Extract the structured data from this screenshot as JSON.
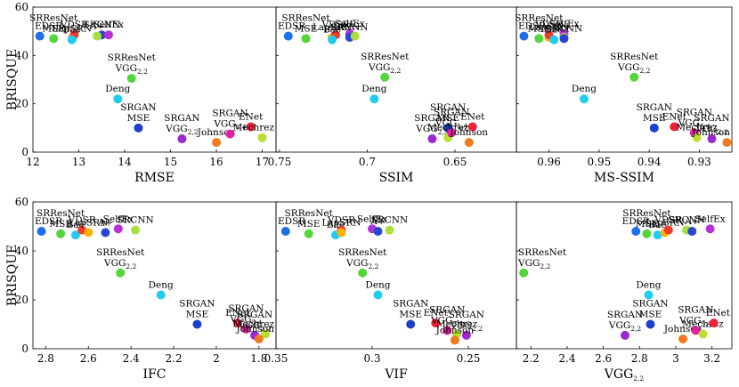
{
  "chart_data": [
    {
      "type": "scatter",
      "xlabel": "RMSE",
      "ylabel": "BRISQUE",
      "xlim": [
        12,
        17.3
      ],
      "ylim": [
        0,
        60
      ],
      "xticks": [
        "12",
        "13",
        "14",
        "15",
        "16",
        "17"
      ],
      "yticks": [
        "0",
        "20",
        "40",
        "60"
      ],
      "points": [
        {
          "name": "EDSR",
          "label": [
            "EDSR"
          ],
          "x": 12.15,
          "y": 48,
          "color": "#1f6fe8"
        },
        {
          "name": "SRResNet MSE",
          "label": [
            "SRResNet",
            "MSE"
          ],
          "x": 12.45,
          "y": 47,
          "color": "#52d63a"
        },
        {
          "name": "LapSRN",
          "label": [
            "LapSRN"
          ],
          "x": 12.85,
          "y": 47,
          "color": "#ffb000"
        },
        {
          "name": "VDSR",
          "label": [
            "VDSR"
          ],
          "x": 12.9,
          "y": 48.5,
          "color": "#f03a2a"
        },
        {
          "name": "Bae",
          "label": [
            "Bae"
          ],
          "x": 12.85,
          "y": 46.5,
          "color": "#20ccee"
        },
        {
          "name": "SRCNN",
          "label": [
            "SRCNN"
          ],
          "x": 13.5,
          "y": 48.5,
          "color": "#2a46d0"
        },
        {
          "name": "A+",
          "label": [
            "A+"
          ],
          "x": 13.4,
          "y": 48,
          "color": "#a8e040"
        },
        {
          "name": "SelfEx",
          "label": [
            "SelfEx"
          ],
          "x": 13.65,
          "y": 48.5,
          "color": "#b431d8"
        },
        {
          "name": "SRResNet VGG2,2",
          "label": [
            "SRResNet",
            "VGG2,2"
          ],
          "x": 14.15,
          "y": 30.5,
          "color": "#52d63a"
        },
        {
          "name": "Deng",
          "label": [
            "Deng"
          ],
          "x": 13.85,
          "y": 22,
          "color": "#20ccee"
        },
        {
          "name": "SRGAN MSE",
          "label": [
            "SRGAN",
            "MSE"
          ],
          "x": 14.3,
          "y": 10,
          "color": "#1f3fc8"
        },
        {
          "name": "SRGAN VGG2,2",
          "label": [
            "SRGAN",
            "VGG2,2"
          ],
          "x": 15.25,
          "y": 5.5,
          "color": "#9a2ad0"
        },
        {
          "name": "Johnson",
          "label": [
            "Johnson"
          ],
          "x": 16.0,
          "y": 4,
          "color": "#f07a20"
        },
        {
          "name": "SRGAN VGG5,4",
          "label": [
            "SRGAN",
            "VGG5,4"
          ],
          "x": 16.3,
          "y": 7.5,
          "color": "#e020a0"
        },
        {
          "name": "ENet",
          "label": [
            "ENet"
          ],
          "x": 16.75,
          "y": 10.5,
          "color": "#f0203a"
        },
        {
          "name": "Mechrez",
          "label": [
            "Mechrez"
          ],
          "x": 17.0,
          "y": 6,
          "color": "#b8e030"
        }
      ]
    },
    {
      "type": "scatter",
      "xlabel": "SSIM",
      "ylabel": "",
      "xlim": [
        0.752,
        0.615
      ],
      "ylim": [
        0,
        60
      ],
      "xticks": [
        "0.75",
        "0.7",
        "0.65"
      ],
      "yticks": [],
      "points": [
        {
          "name": "EDSR",
          "label": [
            "EDSR"
          ],
          "x": 0.745,
          "y": 48,
          "color": "#1f6fe8"
        },
        {
          "name": "SRResNet MSE",
          "label": [
            "SRResNet",
            "MSE"
          ],
          "x": 0.735,
          "y": 47,
          "color": "#52d63a"
        },
        {
          "name": "LapSRN",
          "label": [
            "LapSRN"
          ],
          "x": 0.72,
          "y": 47.5,
          "color": "#ffb000"
        },
        {
          "name": "VDSR",
          "label": [
            "VDSR"
          ],
          "x": 0.718,
          "y": 48.5,
          "color": "#f03a2a"
        },
        {
          "name": "Bae",
          "label": [
            "Bae"
          ],
          "x": 0.72,
          "y": 46.5,
          "color": "#20ccee"
        },
        {
          "name": "SelfEx",
          "label": [
            "SelfEx"
          ],
          "x": 0.71,
          "y": 49,
          "color": "#b431d8"
        },
        {
          "name": "SRCNN",
          "label": [
            "SRCNN"
          ],
          "x": 0.71,
          "y": 47.5,
          "color": "#2a46d0"
        },
        {
          "name": "A+",
          "label": [
            "A+"
          ],
          "x": 0.707,
          "y": 48,
          "color": "#a8e040"
        },
        {
          "name": "SRResNet VGG2,2",
          "label": [
            "SRResNet",
            "VGG2,2"
          ],
          "x": 0.69,
          "y": 31,
          "color": "#52d63a"
        },
        {
          "name": "Deng",
          "label": [
            "Deng"
          ],
          "x": 0.696,
          "y": 22,
          "color": "#20ccee"
        },
        {
          "name": "SRGAN MSE",
          "label": [
            "SRGAN",
            "MSE"
          ],
          "x": 0.654,
          "y": 10,
          "color": "#1f3fc8"
        },
        {
          "name": "SRGAN VGG2,2",
          "label": [
            "SRGAN",
            "VGG2,2"
          ],
          "x": 0.663,
          "y": 5.5,
          "color": "#9a2ad0"
        },
        {
          "name": "Mechrez",
          "label": [
            "Mechrez"
          ],
          "x": 0.654,
          "y": 6,
          "color": "#b8e030"
        },
        {
          "name": "SRGAN VGG5,4",
          "label": [
            "SRGAN",
            "VGG5,4"
          ],
          "x": 0.652,
          "y": 8,
          "color": "#e020a0"
        },
        {
          "name": "ENet",
          "label": [
            "ENet"
          ],
          "x": 0.64,
          "y": 10.5,
          "color": "#f0203a"
        },
        {
          "name": "Johnson",
          "label": [
            "Johnson"
          ],
          "x": 0.642,
          "y": 4,
          "color": "#f07a20"
        }
      ]
    },
    {
      "type": "scatter",
      "xlabel": "MS-SSIM",
      "ylabel": "",
      "xlim": [
        0.9665,
        0.9235
      ],
      "ylim": [
        0,
        60
      ],
      "xticks": [
        "0.96",
        "0.95",
        "0.94",
        "0.93"
      ],
      "yticks": [],
      "points": [
        {
          "name": "EDSR",
          "label": [
            "EDSR"
          ],
          "x": 0.965,
          "y": 48,
          "color": "#1f6fe8"
        },
        {
          "name": "SRResNet MSE",
          "label": [
            "SRResNet",
            "MSE"
          ],
          "x": 0.962,
          "y": 47,
          "color": "#52d63a"
        },
        {
          "name": "LapSRN",
          "label": [
            "LapSRN"
          ],
          "x": 0.96,
          "y": 47.5,
          "color": "#ffb000"
        },
        {
          "name": "VDSR",
          "label": [
            "VDSR"
          ],
          "x": 0.96,
          "y": 48.5,
          "color": "#f03a2a"
        },
        {
          "name": "Bae",
          "label": [
            "Bae"
          ],
          "x": 0.959,
          "y": 46.5,
          "color": "#20ccee"
        },
        {
          "name": "SelfEx",
          "label": [
            "SelfEx"
          ],
          "x": 0.957,
          "y": 49,
          "color": "#b431d8"
        },
        {
          "name": "A+",
          "label": [
            "A+"
          ],
          "x": 0.957,
          "y": 47.5,
          "color": "#a8e040"
        },
        {
          "name": "SRCNN",
          "label": [
            "SRCNN"
          ],
          "x": 0.957,
          "y": 47,
          "color": "#2a46d0"
        },
        {
          "name": "SRResNet VGG2,2",
          "label": [
            "SRResNet",
            "VGG2,2"
          ],
          "x": 0.943,
          "y": 31,
          "color": "#52d63a"
        },
        {
          "name": "Deng",
          "label": [
            "Deng"
          ],
          "x": 0.953,
          "y": 22,
          "color": "#20ccee"
        },
        {
          "name": "SRGAN MSE",
          "label": [
            "SRGAN",
            "MSE"
          ],
          "x": 0.939,
          "y": 10,
          "color": "#1f3fc8"
        },
        {
          "name": "ENet",
          "label": [
            "ENet"
          ],
          "x": 0.935,
          "y": 10.5,
          "color": "#f0203a"
        },
        {
          "name": "SRGAN VGG5,4",
          "label": [
            "SRGAN",
            "VGG5,4"
          ],
          "x": 0.931,
          "y": 8,
          "color": "#e020a0"
        },
        {
          "name": "Mechrez",
          "label": [
            "Mechrez"
          ],
          "x": 0.9305,
          "y": 6,
          "color": "#b8e030"
        },
        {
          "name": "SRGAN VGG2,2",
          "label": [
            "SRGAN",
            "VGG2,2"
          ],
          "x": 0.9275,
          "y": 5.5,
          "color": "#9a2ad0"
        },
        {
          "name": "Johnson",
          "label": [
            "Johnson"
          ],
          "x": 0.9245,
          "y": 4,
          "color": "#f07a20"
        }
      ]
    },
    {
      "type": "scatter",
      "xlabel": "IFC",
      "ylabel": "BRISQUE",
      "xlim": [
        2.86,
        1.72
      ],
      "ylim": [
        0,
        60
      ],
      "xticks": [
        "2.8",
        "2.6",
        "2.4",
        "2.2",
        "2",
        "1.8"
      ],
      "yticks": [
        "0",
        "20",
        "40",
        "60"
      ],
      "points": [
        {
          "name": "EDSR",
          "label": [
            "EDSR"
          ],
          "x": 2.82,
          "y": 48,
          "color": "#1f6fe8"
        },
        {
          "name": "SRResNet MSE",
          "label": [
            "SRResNet",
            "MSE"
          ],
          "x": 2.73,
          "y": 47,
          "color": "#52d63a"
        },
        {
          "name": "Bae",
          "label": [
            "Bae"
          ],
          "x": 2.66,
          "y": 46.5,
          "color": "#20ccee"
        },
        {
          "name": "VDSR",
          "label": [
            "VDSR"
          ],
          "x": 2.63,
          "y": 48.5,
          "color": "#f03a2a"
        },
        {
          "name": "LapSRN",
          "label": [
            "LapSRN"
          ],
          "x": 2.6,
          "y": 47.5,
          "color": "#ffb000"
        },
        {
          "name": "A+",
          "label": [
            "A+"
          ],
          "x": 2.52,
          "y": 47.5,
          "color": "#2a46d0"
        },
        {
          "name": "SelfEx",
          "label": [
            "SelfEx"
          ],
          "x": 2.46,
          "y": 49,
          "color": "#b431d8"
        },
        {
          "name": "SRCNN",
          "label": [
            "SRCNN"
          ],
          "x": 2.38,
          "y": 48.5,
          "color": "#a8e040"
        },
        {
          "name": "SRResNet VGG2,2",
          "label": [
            "SRResNet",
            "VGG2,2"
          ],
          "x": 2.45,
          "y": 31,
          "color": "#52d63a"
        },
        {
          "name": "Deng",
          "label": [
            "Deng"
          ],
          "x": 2.26,
          "y": 22,
          "color": "#20ccee"
        },
        {
          "name": "SRGAN MSE",
          "label": [
            "SRGAN",
            "MSE"
          ],
          "x": 2.09,
          "y": 10,
          "color": "#1f3fc8"
        },
        {
          "name": "ENet",
          "label": [
            "ENet"
          ],
          "x": 1.9,
          "y": 10.5,
          "color": "#f0203a"
        },
        {
          "name": "SRGAN VGG5,4",
          "label": [
            "SRGAN",
            "VGG5,4"
          ],
          "x": 1.86,
          "y": 8,
          "color": "#e020a0"
        },
        {
          "name": "SRGAN VGG2,2",
          "label": [
            "SRGAN",
            "VGG2,2"
          ],
          "x": 1.82,
          "y": 5.5,
          "color": "#9a2ad0"
        },
        {
          "name": "Mechrez",
          "label": [
            "Mechrez"
          ],
          "x": 1.77,
          "y": 6,
          "color": "#b8e030"
        },
        {
          "name": "Johnson",
          "label": [
            "Johnson"
          ],
          "x": 1.8,
          "y": 4,
          "color": "#f07a20"
        }
      ]
    },
    {
      "type": "scatter",
      "xlabel": "VIF",
      "ylabel": "",
      "xlim": [
        0.35,
        0.225
      ],
      "ylim": [
        0,
        60
      ],
      "xticks": [
        "0.35",
        "0.3",
        "0.25"
      ],
      "yticks": [],
      "points": [
        {
          "name": "EDSR",
          "label": [
            "EDSR"
          ],
          "x": 0.345,
          "y": 48,
          "color": "#1f6fe8"
        },
        {
          "name": "SRResNet MSE",
          "label": [
            "SRResNet",
            "MSE"
          ],
          "x": 0.333,
          "y": 47,
          "color": "#52d63a"
        },
        {
          "name": "Bae",
          "label": [
            "Bae"
          ],
          "x": 0.319,
          "y": 46.5,
          "color": "#20ccee"
        },
        {
          "name": "VDSR",
          "label": [
            "VDSR"
          ],
          "x": 0.316,
          "y": 48.5,
          "color": "#f03a2a"
        },
        {
          "name": "LapSRN",
          "label": [
            "LapSRN"
          ],
          "x": 0.316,
          "y": 47.5,
          "color": "#ffb000"
        },
        {
          "name": "SelfEx",
          "label": [
            "SelfEx"
          ],
          "x": 0.3,
          "y": 49,
          "color": "#b431d8"
        },
        {
          "name": "A+",
          "label": [
            "A+"
          ],
          "x": 0.297,
          "y": 48,
          "color": "#2a46d0"
        },
        {
          "name": "SRCNN",
          "label": [
            "SRCNN"
          ],
          "x": 0.291,
          "y": 48.5,
          "color": "#a8e040"
        },
        {
          "name": "SRResNet VGG2,2",
          "label": [
            "SRResNet",
            "VGG2,2"
          ],
          "x": 0.305,
          "y": 31,
          "color": "#52d63a"
        },
        {
          "name": "Deng",
          "label": [
            "Deng"
          ],
          "x": 0.297,
          "y": 22,
          "color": "#20ccee"
        },
        {
          "name": "SRGAN MSE",
          "label": [
            "SRGAN",
            "MSE"
          ],
          "x": 0.28,
          "y": 10,
          "color": "#1f3fc8"
        },
        {
          "name": "ENet",
          "label": [
            "ENet"
          ],
          "x": 0.267,
          "y": 10.5,
          "color": "#f0203a"
        },
        {
          "name": "SRGAN VGG5,4",
          "label": [
            "SRGAN",
            "VGG5,4"
          ],
          "x": 0.261,
          "y": 7.5,
          "color": "#e020a0"
        },
        {
          "name": "Mechrez",
          "label": [
            "Mechrez"
          ],
          "x": 0.256,
          "y": 6,
          "color": "#b8e030"
        },
        {
          "name": "SRGAN VGG2,2",
          "label": [
            "SRGAN",
            "VGG2,2"
          ],
          "x": 0.251,
          "y": 5.5,
          "color": "#9a2ad0"
        },
        {
          "name": "Johnson",
          "label": [
            "Johnson"
          ],
          "x": 0.257,
          "y": 3.5,
          "color": "#f07a20"
        }
      ]
    },
    {
      "type": "scatter",
      "xlabel": "VGG2,2",
      "ylabel": "",
      "xlim": [
        2.12,
        3.31
      ],
      "ylim": [
        0,
        60
      ],
      "xticks": [
        "2.2",
        "2.4",
        "2.6",
        "2.8",
        "3",
        "3.2"
      ],
      "yticks": [],
      "points": [
        {
          "name": "SRResNet VGG2,2",
          "label": [
            "SRResNet",
            "VGG2,2"
          ],
          "x": 2.16,
          "y": 31,
          "color": "#52d63a"
        },
        {
          "name": "EDSR",
          "label": [
            "EDSR"
          ],
          "x": 2.78,
          "y": 48,
          "color": "#1f6fe8"
        },
        {
          "name": "SRResNet MSE",
          "label": [
            "SRResNet",
            "MSE"
          ],
          "x": 2.84,
          "y": 47,
          "color": "#52d63a"
        },
        {
          "name": "Bae",
          "label": [
            "Bae"
          ],
          "x": 2.9,
          "y": 46.5,
          "color": "#20ccee"
        },
        {
          "name": "LapSRN",
          "label": [
            "LapSRN"
          ],
          "x": 2.94,
          "y": 47.5,
          "color": "#ffb000"
        },
        {
          "name": "VDSR",
          "label": [
            "VDSR"
          ],
          "x": 2.96,
          "y": 48.5,
          "color": "#f03a2a"
        },
        {
          "name": "SRCNN",
          "label": [
            "SRCNN"
          ],
          "x": 3.06,
          "y": 48.5,
          "color": "#a8e040"
        },
        {
          "name": "A+",
          "label": [
            "A+"
          ],
          "x": 3.09,
          "y": 48,
          "color": "#2a46d0"
        },
        {
          "name": "SelfEx",
          "label": [
            "SelfEx"
          ],
          "x": 3.19,
          "y": 49,
          "color": "#b431d8"
        },
        {
          "name": "Deng",
          "label": [
            "Deng"
          ],
          "x": 2.85,
          "y": 22,
          "color": "#20ccee"
        },
        {
          "name": "SRGAN MSE",
          "label": [
            "SRGAN",
            "MSE"
          ],
          "x": 2.86,
          "y": 10,
          "color": "#1f3fc8"
        },
        {
          "name": "SRGAN VGG2,2",
          "label": [
            "SRGAN",
            "VGG2,2"
          ],
          "x": 2.72,
          "y": 5.5,
          "color": "#9a2ad0"
        },
        {
          "name": "Johnson",
          "label": [
            "Johnson"
          ],
          "x": 3.04,
          "y": 4,
          "color": "#f07a20"
        },
        {
          "name": "SRGAN VGG5,4",
          "label": [
            "SRGAN",
            "VGG5,4"
          ],
          "x": 3.11,
          "y": 7.5,
          "color": "#e020a0"
        },
        {
          "name": "Mechrez",
          "label": [
            "Mechrez"
          ],
          "x": 3.15,
          "y": 6,
          "color": "#b8e030"
        },
        {
          "name": "ENet",
          "label": [
            "ENet"
          ],
          "x": 3.21,
          "y": 10.5,
          "color": "#f0203a"
        }
      ]
    }
  ]
}
